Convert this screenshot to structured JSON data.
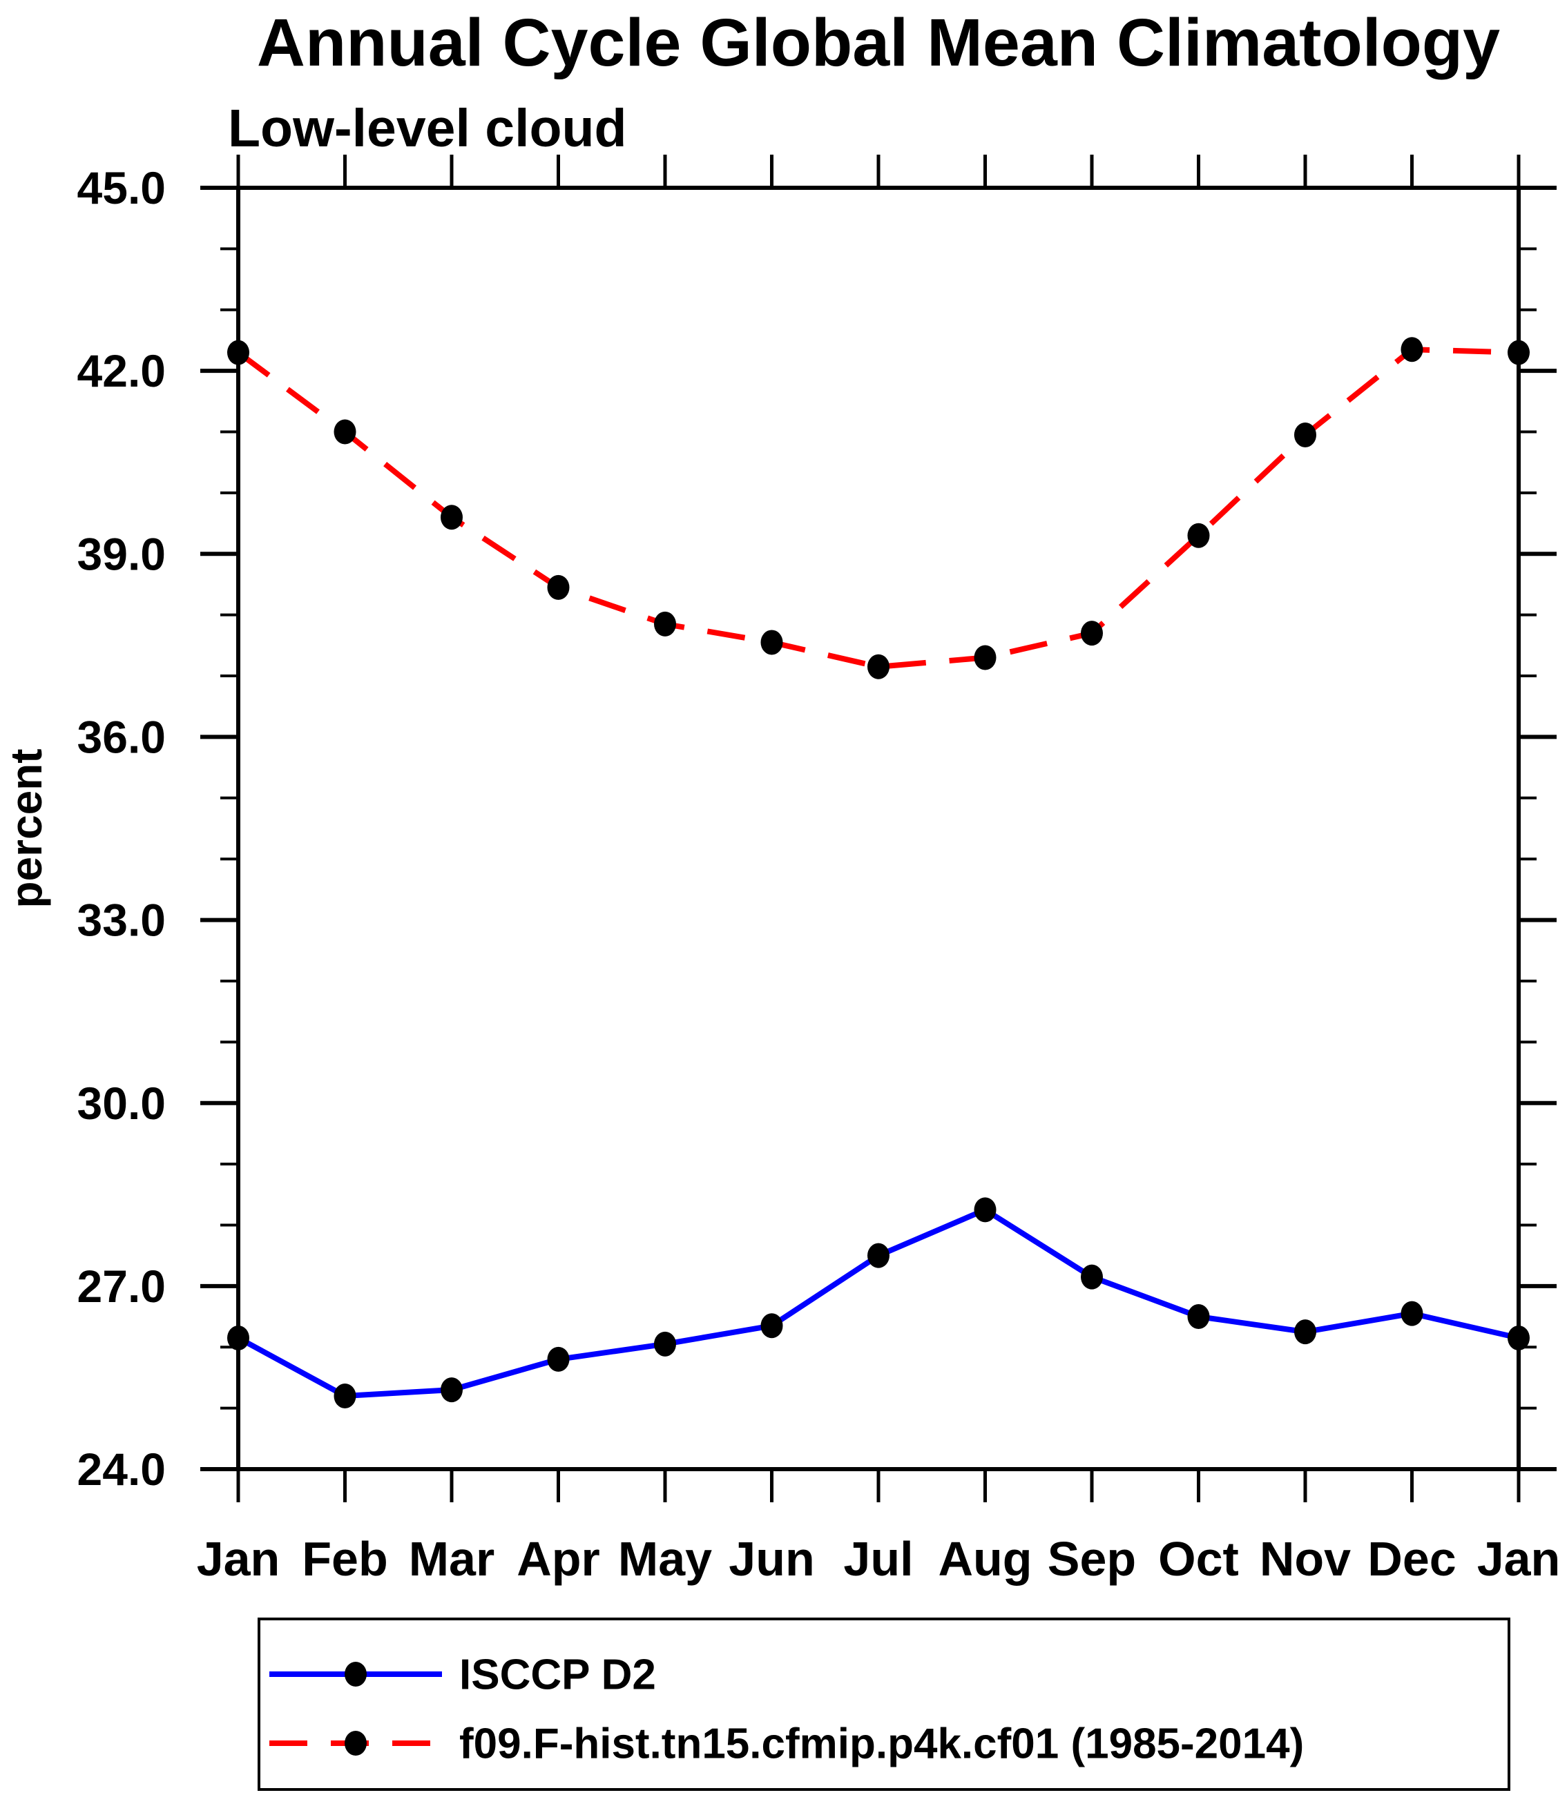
{
  "chart_data": {
    "type": "line",
    "title": "Annual Cycle Global Mean Climatology",
    "subtitle": "Low-level cloud",
    "ylabel": "percent",
    "xlabel": "",
    "categories": [
      "Jan",
      "Feb",
      "Mar",
      "Apr",
      "May",
      "Jun",
      "Jul",
      "Aug",
      "Sep",
      "Oct",
      "Nov",
      "Dec",
      "Jan"
    ],
    "ylim": [
      24.0,
      45.0
    ],
    "y_major_step": 3.0,
    "y_minor_step": 1.0,
    "y_tick_decimals": 1,
    "grid": false,
    "legend_position": "bottom",
    "axis_color": "#000000",
    "background_color": "#ffffff",
    "series": [
      {
        "name": "ISCCP D2",
        "color": "#0000ff",
        "line_style": "solid",
        "marker": "filled-circle",
        "marker_color": "#000000",
        "values": [
          26.15,
          25.2,
          25.3,
          25.8,
          26.05,
          26.35,
          27.5,
          28.25,
          27.15,
          26.5,
          26.25,
          26.55,
          26.15
        ]
      },
      {
        "name": "f09.F-hist.tn15.cfmip.p4k.cf01 (1985-2014)",
        "color": "#ff0000",
        "line_style": "dashed",
        "marker": "filled-circle",
        "marker_color": "#000000",
        "values": [
          42.3,
          41.0,
          39.6,
          38.45,
          37.85,
          37.55,
          37.15,
          37.3,
          37.7,
          39.3,
          40.95,
          42.35,
          42.3
        ]
      }
    ]
  }
}
